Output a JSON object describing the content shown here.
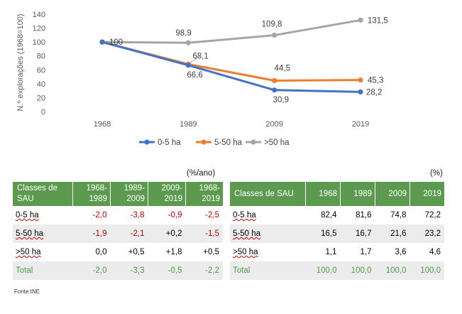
{
  "chart_data": {
    "type": "line",
    "x": [
      "1968",
      "1989",
      "2009",
      "2019"
    ],
    "ylabel": "N.º explorações (1968=100)",
    "ylim": [
      0,
      140
    ],
    "yticks": [
      "0",
      "20",
      "40",
      "60",
      "80",
      "100",
      "120",
      "140"
    ],
    "grid": false,
    "legend_position": "bottom",
    "series": [
      {
        "name": "0-5 ha",
        "color": "#4472c4",
        "values": [
          100,
          66.6,
          30.9,
          28.2
        ],
        "labels": [
          "",
          "66,6",
          "30,9",
          "28,2"
        ]
      },
      {
        "name": "5-50 ha",
        "color": "#ed7d31",
        "values": [
          100,
          68.1,
          44.5,
          45.3
        ],
        "labels": [
          "",
          "68,1",
          "44,5",
          "45,3"
        ]
      },
      {
        "name": ">50 ha",
        "color": "#a5a5a5",
        "values": [
          100,
          98.9,
          109.8,
          131.5
        ],
        "labels": [
          "100",
          "98,9",
          "109,8",
          "131,5"
        ]
      }
    ]
  },
  "tables": {
    "left": {
      "unit": "(%/ano)",
      "headers": [
        "Classes de SAU",
        "1968-1989",
        "1989-2009",
        "2009-2019",
        "1968-2019"
      ],
      "rows": [
        {
          "label": "0-5 ha",
          "cells": [
            "-2,0",
            "-3,8",
            "-0,9",
            "-2,5"
          ]
        },
        {
          "label": "5-50 ha",
          "cells": [
            "-1,9",
            "-2,1",
            "+0,2",
            "-1,5"
          ]
        },
        {
          "label": ">50 ha",
          "cells": [
            "0,0",
            "+0,5",
            "+1,8",
            "+0,5"
          ]
        },
        {
          "label": "Total",
          "cells": [
            "-2,0",
            "-3,3",
            "-0,5",
            "-2,2"
          ]
        }
      ]
    },
    "right": {
      "unit": "(%)",
      "headers": [
        "Classes de SAU",
        "1968",
        "1989",
        "2009",
        "2019"
      ],
      "rows": [
        {
          "label": "0-5 ha",
          "cells": [
            "82,4",
            "81,6",
            "74,8",
            "72,2"
          ]
        },
        {
          "label": "5-50 ha",
          "cells": [
            "16,5",
            "16,7",
            "21,6",
            "23,2"
          ]
        },
        {
          "label": ">50 ha",
          "cells": [
            "1,1",
            "1,7",
            "3,6",
            "4,6"
          ]
        },
        {
          "label": "Total",
          "cells": [
            "100,0",
            "100,0",
            "100,0",
            "100,0"
          ]
        }
      ]
    }
  },
  "source": "Fonte:INE"
}
